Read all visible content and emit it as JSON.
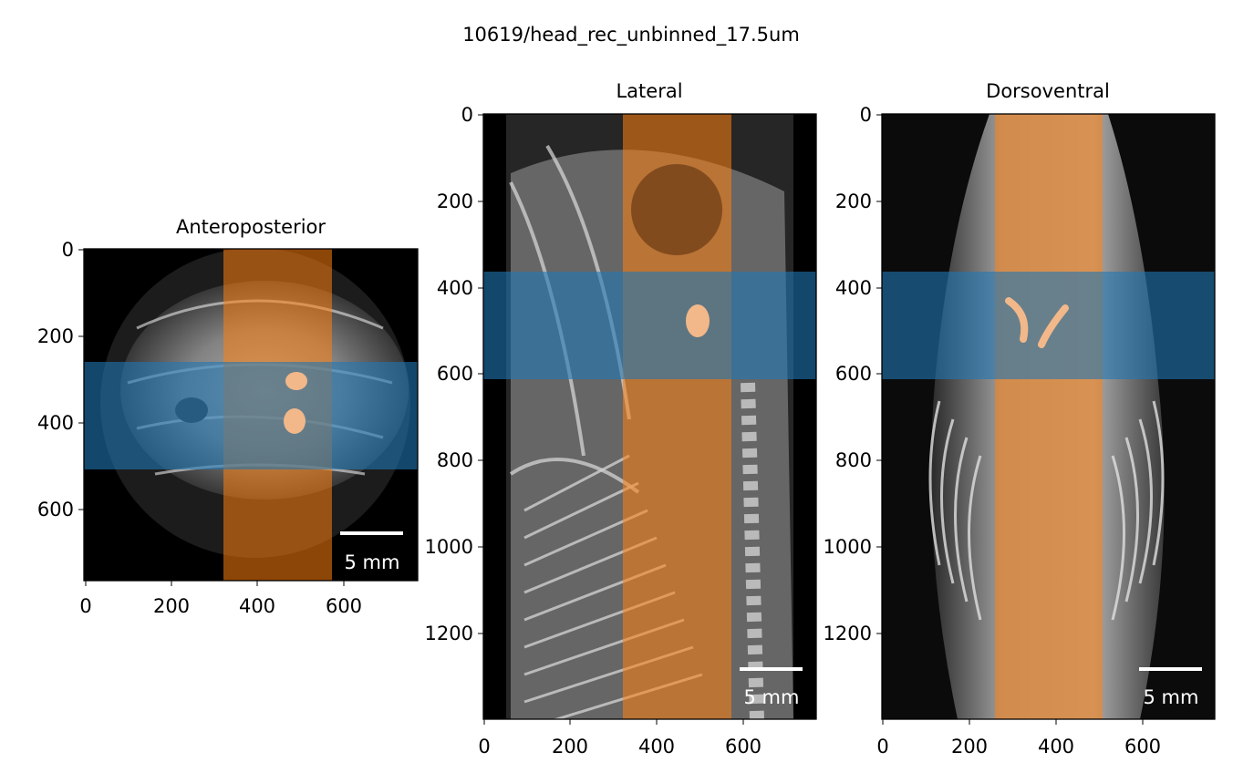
{
  "figure": {
    "title": "10619/head_rec_unbinned_17.5um",
    "scalebar_label": "5 mm",
    "overlay_colors": {
      "orange": "#ff7f0e",
      "blue": "#1f77b4"
    }
  },
  "panels": [
    {
      "title": "Anteroposterior",
      "extent": {
        "width": 770,
        "height": 770
      },
      "xticks": [
        "0",
        "200",
        "400",
        "600"
      ],
      "yticks": [
        "0",
        "200",
        "400",
        "600"
      ],
      "orange_band_x": [
        322,
        573
      ],
      "blue_band_y": [
        262,
        507
      ],
      "scalebar_label": "5 mm"
    },
    {
      "title": "Lateral",
      "extent": {
        "width": 770,
        "height": 1400
      },
      "xticks": [
        "0",
        "200",
        "400",
        "600"
      ],
      "yticks": [
        "0",
        "200",
        "400",
        "600",
        "800",
        "1000",
        "1200"
      ],
      "orange_band_x": [
        322,
        573
      ],
      "blue_band_y": [
        365,
        612
      ],
      "scalebar_label": "5 mm"
    },
    {
      "title": "Dorsoventral",
      "extent": {
        "width": 770,
        "height": 1400
      },
      "xticks": [
        "0",
        "200",
        "400",
        "600"
      ],
      "yticks": [
        "0",
        "200",
        "400",
        "600",
        "800",
        "1000",
        "1200"
      ],
      "orange_band_x": [
        262,
        508
      ],
      "blue_band_y": [
        365,
        612
      ],
      "scalebar_label": "5 mm"
    }
  ]
}
